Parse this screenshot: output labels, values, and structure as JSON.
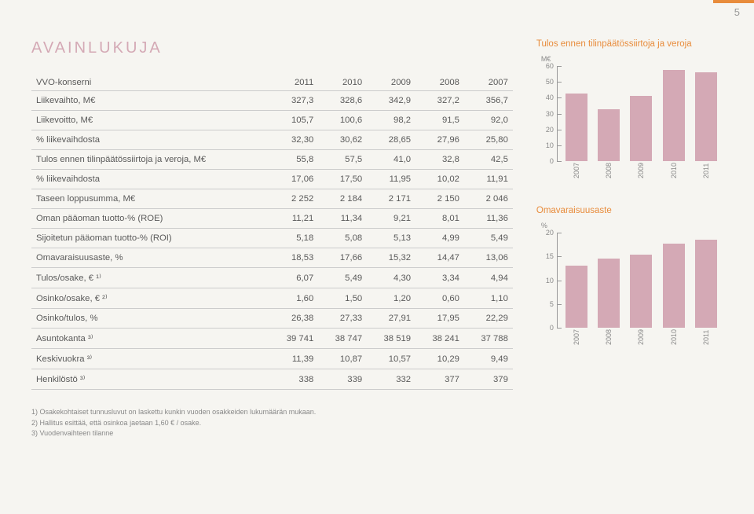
{
  "page_number": "5",
  "title": "AVAINLUKUJA",
  "table": {
    "header": [
      "VVO-konserni",
      "2011",
      "2010",
      "2009",
      "2008",
      "2007"
    ],
    "rows": [
      [
        "Liikevaihto, M€",
        "327,3",
        "328,6",
        "342,9",
        "327,2",
        "356,7"
      ],
      [
        "Liikevoitto, M€",
        "105,7",
        "100,6",
        "98,2",
        "91,5",
        "92,0"
      ],
      [
        "% liikevaihdosta",
        "32,30",
        "30,62",
        "28,65",
        "27,96",
        "25,80"
      ],
      [
        "Tulos ennen tilinpäätössiirtoja ja veroja, M€",
        "55,8",
        "57,5",
        "41,0",
        "32,8",
        "42,5"
      ],
      [
        "% liikevaihdosta",
        "17,06",
        "17,50",
        "11,95",
        "10,02",
        "11,91"
      ],
      [
        "Taseen loppusumma, M€",
        "2 252",
        "2 184",
        "2 171",
        "2 150",
        "2 046"
      ],
      [
        "Oman pääoman tuotto-% (ROE)",
        "11,21",
        "11,34",
        "9,21",
        "8,01",
        "11,36"
      ],
      [
        "Sijoitetun pääoman tuotto-% (ROI)",
        "5,18",
        "5,08",
        "5,13",
        "4,99",
        "5,49"
      ],
      [
        "Omavaraisuusaste, %",
        "18,53",
        "17,66",
        "15,32",
        "14,47",
        "13,06"
      ],
      [
        "Tulos/osake, € ¹⁾",
        "6,07",
        "5,49",
        "4,30",
        "3,34",
        "4,94"
      ],
      [
        "Osinko/osake, € ²⁾",
        "1,60",
        "1,50",
        "1,20",
        "0,60",
        "1,10"
      ],
      [
        "Osinko/tulos, %",
        "26,38",
        "27,33",
        "27,91",
        "17,95",
        "22,29"
      ],
      [
        "Asuntokanta ³⁾",
        "39 741",
        "38 747",
        "38 519",
        "38 241",
        "37 788"
      ],
      [
        "Keskivuokra ³⁾",
        "11,39",
        "10,87",
        "10,57",
        "10,29",
        "9,49"
      ],
      [
        "Henkilöstö ³⁾",
        "338",
        "339",
        "332",
        "377",
        "379"
      ]
    ]
  },
  "footnotes": [
    "1) Osakekohtaiset tunnusluvut on laskettu kunkin vuoden osakkeiden lukumäärän mukaan.",
    "2) Hallitus esittää, että osinkoa jaetaan 1,60 € / osake.",
    "3) Vuodenvaihteen tilanne"
  ],
  "chart1": {
    "title": "Tulos ennen tilinpäätössiirtoja ja veroja",
    "unit": "M€",
    "type": "bar",
    "categories": [
      "2007",
      "2008",
      "2009",
      "2010",
      "2011"
    ],
    "values": [
      42.5,
      32.8,
      41.0,
      57.5,
      55.8
    ],
    "ylim": [
      0,
      60
    ],
    "yticks": [
      0,
      10,
      20,
      30,
      40,
      50,
      60
    ],
    "bar_color": "#d4a9b5",
    "text_color": "#888888",
    "title_color": "#e88c3c"
  },
  "chart2": {
    "title": "Omavaraisuusaste",
    "unit": "%",
    "type": "bar",
    "categories": [
      "2007",
      "2008",
      "2009",
      "2010",
      "2011"
    ],
    "values": [
      13.06,
      14.47,
      15.32,
      17.66,
      18.53
    ],
    "ylim": [
      0,
      20
    ],
    "yticks": [
      0,
      5,
      10,
      15,
      20
    ],
    "bar_color": "#d4a9b5",
    "text_color": "#888888",
    "title_color": "#e88c3c"
  }
}
